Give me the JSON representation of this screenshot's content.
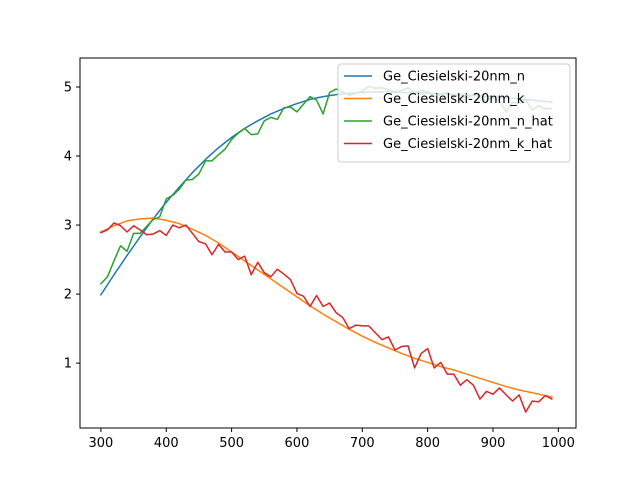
{
  "chart_data": {
    "type": "line",
    "title": "",
    "xlabel": "",
    "ylabel": "",
    "xlim": [
      268,
      1027
    ],
    "ylim": [
      0.06,
      5.42
    ],
    "xticks": [
      300,
      400,
      500,
      600,
      700,
      800,
      900,
      1000
    ],
    "yticks": [
      1,
      2,
      3,
      4,
      5
    ],
    "grid": false,
    "legend_position": "top-right",
    "series": [
      {
        "name": "Ge_Ciesielski-20nm_n",
        "color": "#1f77b4",
        "x": [
          300,
          320,
          340,
          360,
          380,
          400,
          420,
          440,
          460,
          480,
          500,
          520,
          540,
          560,
          580,
          600,
          620,
          640,
          660,
          680,
          700,
          720,
          740,
          760,
          780,
          800,
          820,
          840,
          860,
          880,
          900,
          920,
          940,
          960,
          980,
          990
        ],
        "y": [
          1.99,
          2.28,
          2.56,
          2.83,
          3.09,
          3.33,
          3.55,
          3.76,
          3.95,
          4.12,
          4.27,
          4.4,
          4.51,
          4.61,
          4.69,
          4.76,
          4.82,
          4.86,
          4.89,
          4.91,
          4.92,
          4.93,
          4.93,
          4.92,
          4.92,
          4.91,
          4.9,
          4.89,
          4.88,
          4.87,
          4.86,
          4.84,
          4.83,
          4.81,
          4.79,
          4.78
        ]
      },
      {
        "name": "Ge_Ciesielski-20nm_k",
        "color": "#ff7f0e",
        "x": [
          300,
          320,
          340,
          360,
          380,
          400,
          420,
          440,
          460,
          480,
          500,
          520,
          540,
          560,
          580,
          600,
          620,
          640,
          660,
          680,
          700,
          720,
          740,
          760,
          780,
          800,
          820,
          840,
          860,
          880,
          900,
          920,
          940,
          960,
          980,
          990
        ],
        "y": [
          2.9,
          2.99,
          3.06,
          3.09,
          3.1,
          3.07,
          3.02,
          2.94,
          2.85,
          2.74,
          2.61,
          2.48,
          2.35,
          2.22,
          2.09,
          1.96,
          1.83,
          1.71,
          1.6,
          1.49,
          1.39,
          1.3,
          1.22,
          1.14,
          1.07,
          1.01,
          0.95,
          0.9,
          0.84,
          0.78,
          0.72,
          0.66,
          0.61,
          0.57,
          0.53,
          0.51
        ]
      },
      {
        "name": "Ge_Ciesielski-20nm_n_hat",
        "color": "#2ca02c",
        "x": [
          300,
          310,
          320,
          330,
          340,
          350,
          360,
          370,
          380,
          390,
          400,
          410,
          420,
          430,
          440,
          450,
          460,
          470,
          480,
          490,
          500,
          510,
          520,
          530,
          540,
          550,
          560,
          570,
          580,
          590,
          600,
          610,
          620,
          630,
          640,
          650,
          660,
          670,
          680,
          690,
          700,
          710,
          720,
          730,
          740,
          750,
          760,
          770,
          780,
          790,
          800,
          810,
          820,
          830,
          840,
          850,
          860,
          870,
          880,
          890,
          900,
          910,
          920,
          930,
          940,
          950,
          960,
          970,
          980,
          990
        ],
        "y": [
          2.15,
          2.25,
          2.48,
          2.7,
          2.62,
          2.88,
          2.88,
          2.98,
          3.08,
          3.12,
          3.38,
          3.43,
          3.52,
          3.65,
          3.66,
          3.74,
          3.93,
          3.93,
          4.02,
          4.1,
          4.24,
          4.33,
          4.4,
          4.31,
          4.32,
          4.51,
          4.56,
          4.53,
          4.7,
          4.71,
          4.64,
          4.75,
          4.86,
          4.81,
          4.61,
          4.92,
          4.97,
          4.93,
          4.88,
          4.91,
          4.94,
          5.01,
          4.98,
          4.99,
          4.96,
          4.93,
          4.95,
          4.99,
          4.92,
          4.95,
          4.93,
          4.86,
          4.89,
          4.92,
          4.85,
          4.89,
          4.84,
          4.89,
          4.86,
          4.8,
          4.84,
          4.8,
          4.64,
          4.78,
          4.76,
          4.81,
          4.67,
          4.73,
          4.68,
          4.69
        ]
      },
      {
        "name": "Ge_Ciesielski-20nm_k_hat",
        "color": "#d62728",
        "x": [
          300,
          310,
          320,
          330,
          340,
          350,
          360,
          370,
          380,
          390,
          400,
          410,
          420,
          430,
          440,
          450,
          460,
          470,
          480,
          490,
          500,
          510,
          520,
          530,
          540,
          550,
          560,
          570,
          580,
          590,
          600,
          610,
          620,
          630,
          640,
          650,
          660,
          670,
          680,
          690,
          700,
          710,
          720,
          730,
          740,
          750,
          760,
          770,
          780,
          790,
          800,
          810,
          820,
          830,
          840,
          850,
          860,
          870,
          880,
          890,
          900,
          910,
          920,
          930,
          940,
          950,
          960,
          970,
          980,
          990
        ],
        "y": [
          2.89,
          2.93,
          3.03,
          2.99,
          2.9,
          2.99,
          2.93,
          2.86,
          2.87,
          2.92,
          2.85,
          3.0,
          2.96,
          3.0,
          2.88,
          2.76,
          2.73,
          2.57,
          2.72,
          2.61,
          2.61,
          2.5,
          2.55,
          2.28,
          2.46,
          2.31,
          2.25,
          2.36,
          2.29,
          2.21,
          2.01,
          1.97,
          1.82,
          1.98,
          1.82,
          1.87,
          1.73,
          1.66,
          1.5,
          1.55,
          1.54,
          1.54,
          1.44,
          1.34,
          1.38,
          1.19,
          1.24,
          1.25,
          0.93,
          1.14,
          1.21,
          0.93,
          1.01,
          0.84,
          0.84,
          0.68,
          0.76,
          0.68,
          0.48,
          0.59,
          0.55,
          0.64,
          0.54,
          0.45,
          0.54,
          0.29,
          0.45,
          0.44,
          0.53,
          0.48
        ]
      }
    ]
  }
}
